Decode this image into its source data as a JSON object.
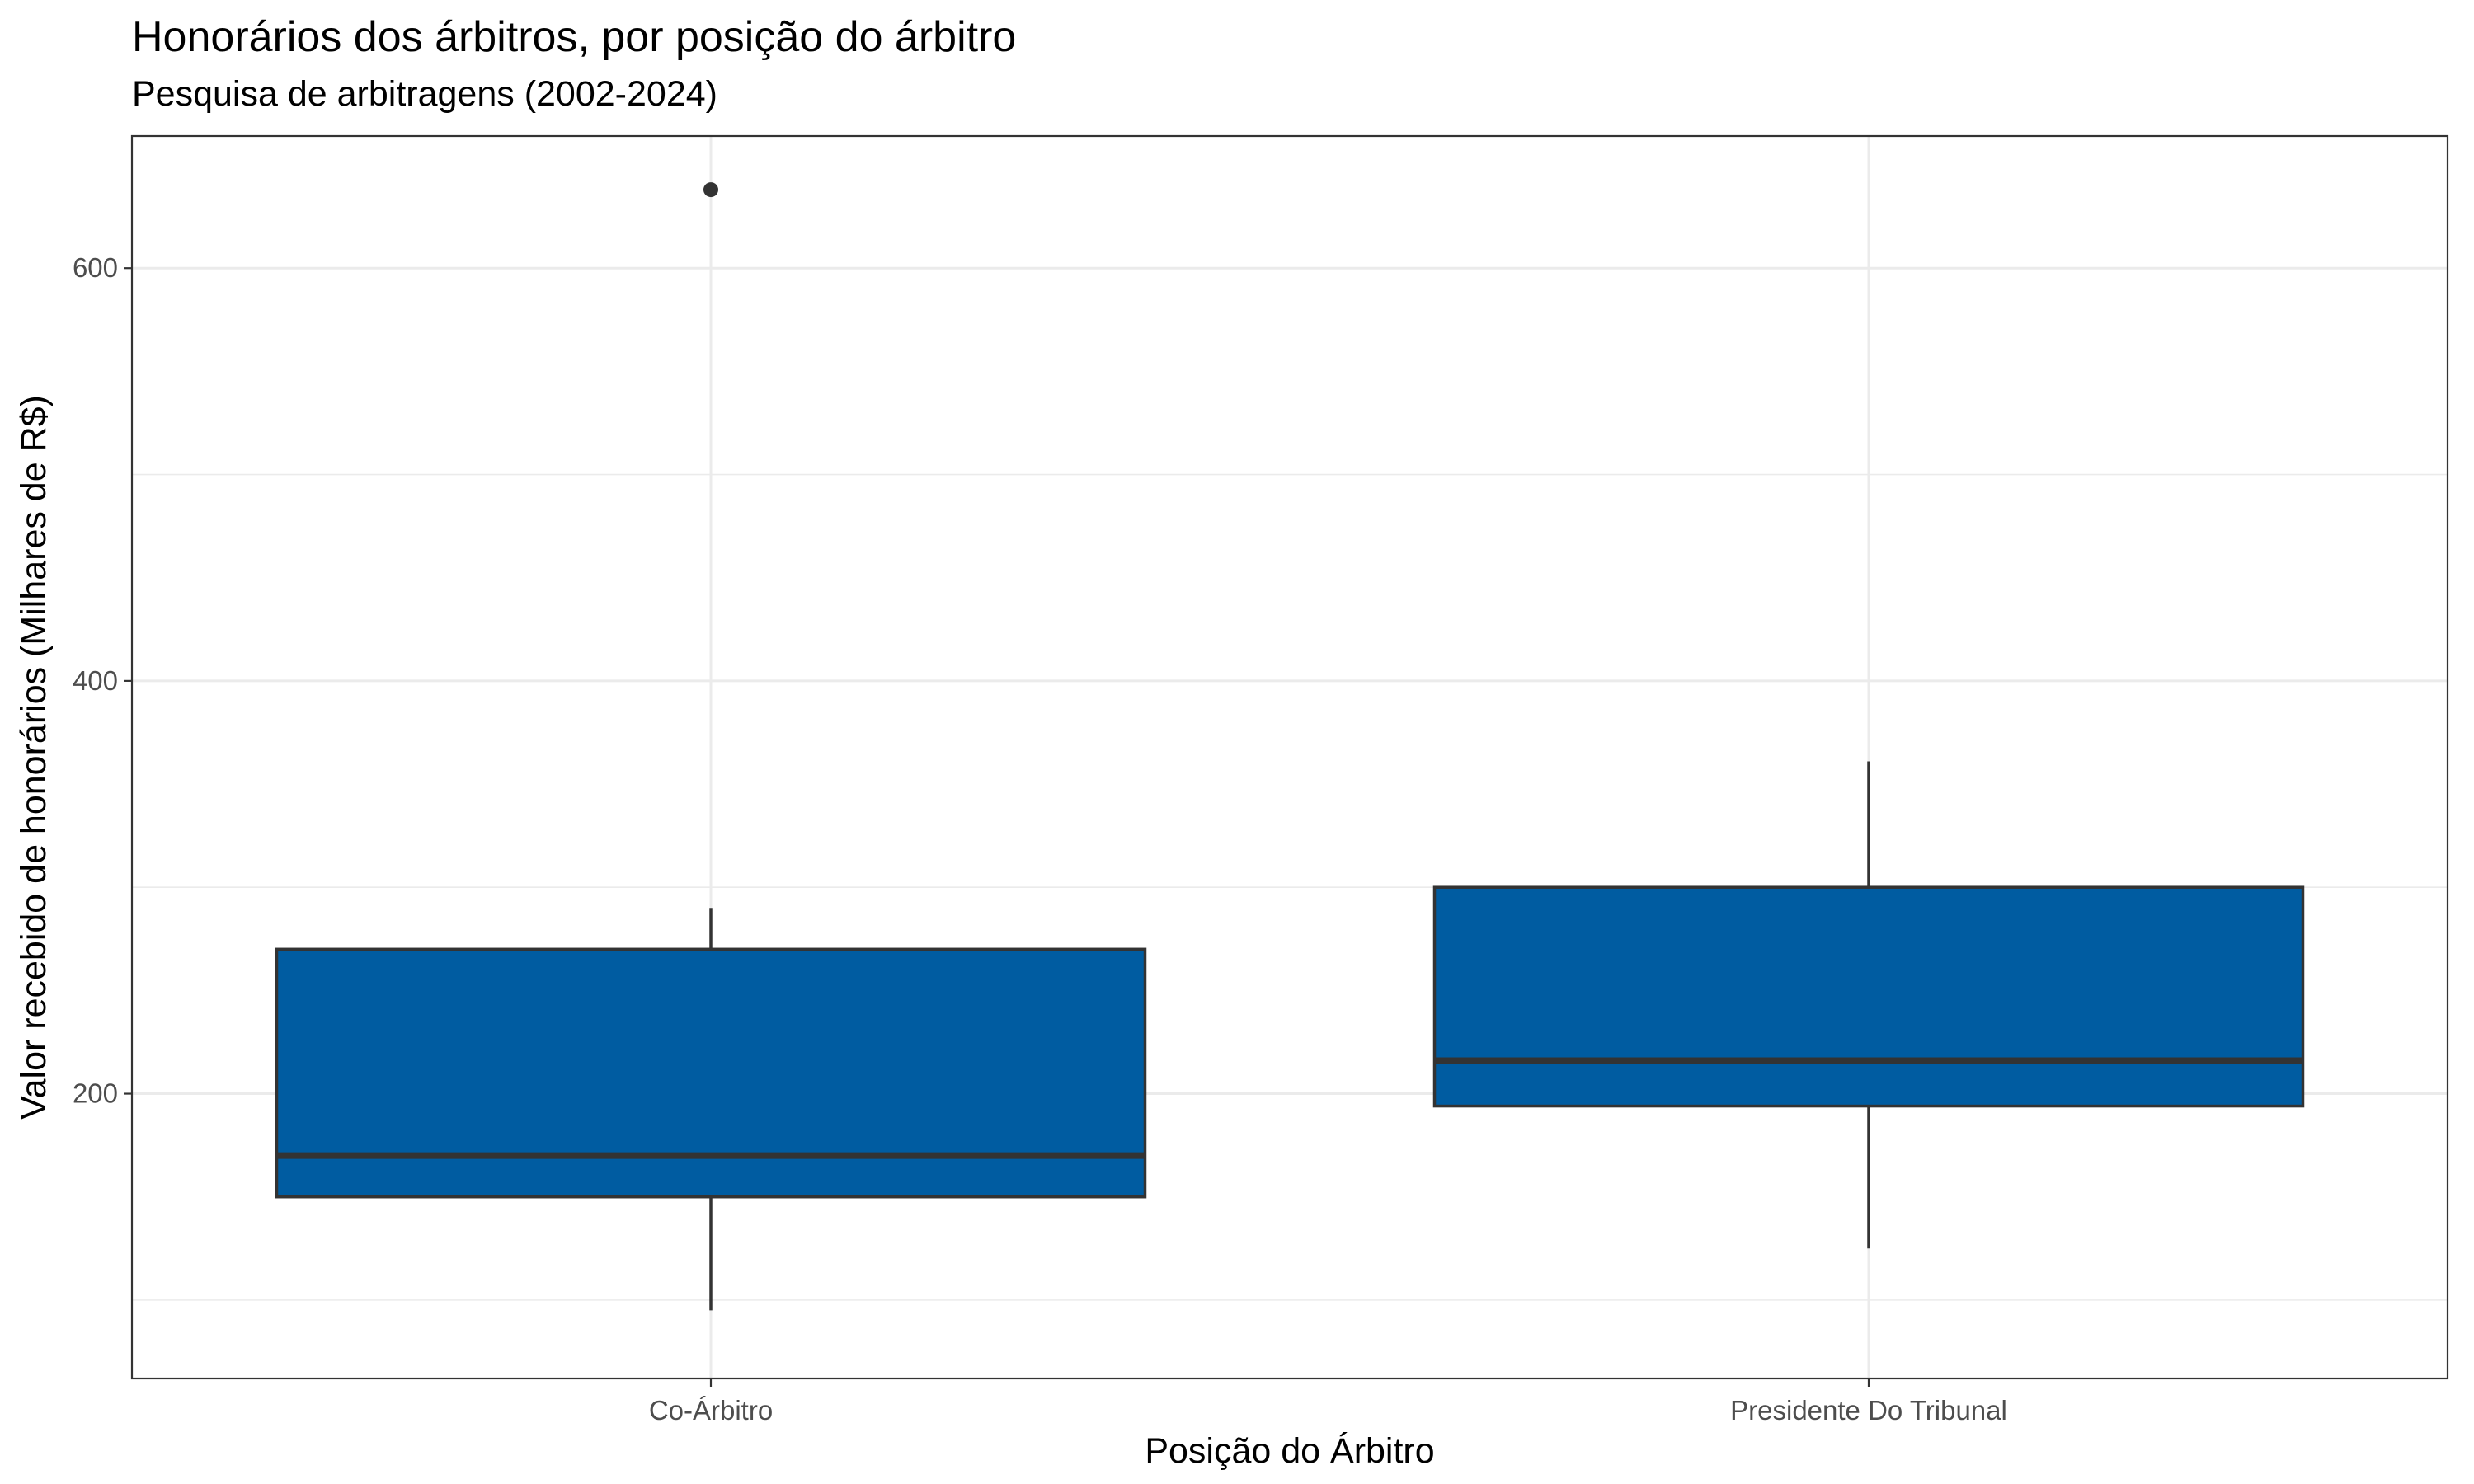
{
  "title": "Honorários dos árbitros, por posição do árbitro",
  "subtitle": "Pesquisa de arbitragens (2002-2024)",
  "chart_data": {
    "type": "boxplot",
    "title": "Honorários dos árbitros, por posição do árbitro",
    "subtitle": "Pesquisa de arbitragens (2002-2024)",
    "xlabel": "Posição do Árbitro",
    "ylabel": "Valor recebido de honorários (Milhares de R$)",
    "categories": [
      "Co-Árbitro",
      "Presidente Do Tribunal"
    ],
    "boxes": [
      {
        "category": "Co-Árbitro",
        "min": 95,
        "q1": 150,
        "median": 170,
        "q3": 270,
        "max": 290,
        "outliers": [
          638
        ]
      },
      {
        "category": "Presidente Do Tribunal",
        "min": 125,
        "q1": 194,
        "median": 216,
        "q3": 300,
        "max": 361,
        "outliers": []
      }
    ],
    "ylim": [
      62,
      664
    ],
    "y_ticks": [
      200,
      400,
      600
    ],
    "y_tick_labels": [
      "200",
      "400",
      "600"
    ],
    "grid": true,
    "colors": {
      "box_fill": "#005CA1",
      "box_stroke": "#333333",
      "grid": "#EBEBEB",
      "panel_border": "#333333"
    }
  }
}
